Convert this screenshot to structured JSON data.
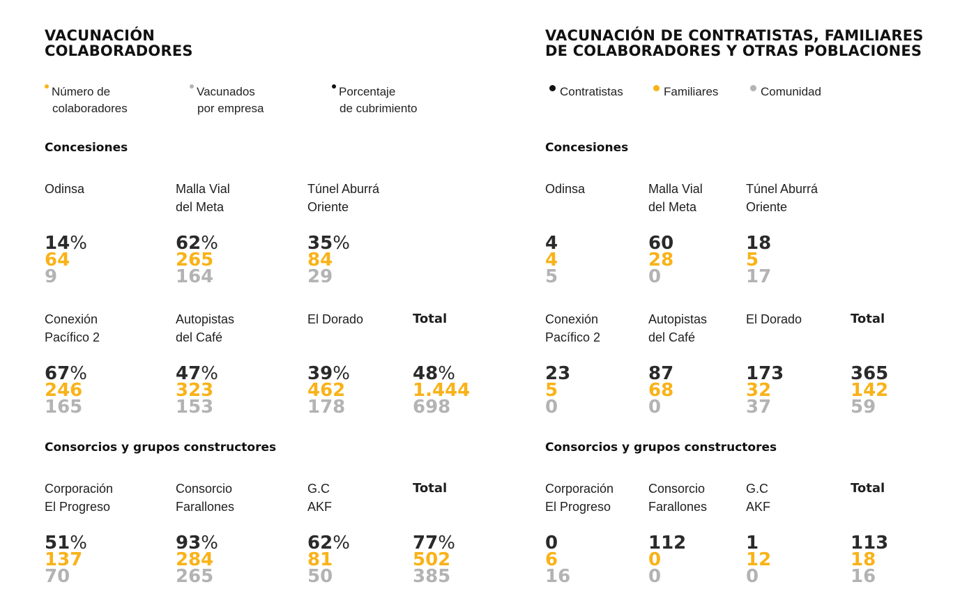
{
  "colors": {
    "black": "#111111",
    "orange": "#f9b218",
    "gray": "#b3b3b3"
  },
  "left": {
    "title": [
      "VACUNACIÓN",
      "COLABORADORES"
    ],
    "legend": [
      {
        "color": "orange",
        "line1": "Número de",
        "line2": "colaboradores"
      },
      {
        "color": "gray",
        "line1": "Vacunados",
        "line2": "por empresa"
      },
      {
        "color": "black",
        "line1": "Porcentaje",
        "line2": "de cubrimiento"
      }
    ],
    "sections": [
      {
        "title": "Concesiones",
        "rows": [
          [
            {
              "name": [
                "Odinsa"
              ],
              "v1": "14",
              "v2": "64",
              "v3": "9"
            },
            {
              "name": [
                "Malla Vial",
                "del Meta"
              ],
              "v1": "62",
              "v2": "265",
              "v3": "164"
            },
            {
              "name": [
                "Túnel Aburrá",
                "Oriente"
              ],
              "v1": "35",
              "v2": "84",
              "v3": "29"
            }
          ],
          [
            {
              "name": [
                "Conexión",
                "Pacífico 2"
              ],
              "v1": "67",
              "v2": "246",
              "v3": "165"
            },
            {
              "name": [
                "Autopistas",
                "del Café"
              ],
              "v1": "47",
              "v2": "323",
              "v3": "153"
            },
            {
              "name": [
                "El Dorado"
              ],
              "v1": "39",
              "v2": "462",
              "v3": "178"
            },
            {
              "name": [
                "Total"
              ],
              "total": true,
              "v1": "48",
              "v2": "1.444",
              "v3": "698"
            }
          ]
        ]
      },
      {
        "title": "Consorcios y grupos constructores",
        "rows": [
          [
            {
              "name": [
                "Corporación",
                "El Progreso"
              ],
              "v1": "51",
              "v2": "137",
              "v3": "70"
            },
            {
              "name": [
                "Consorcio",
                "Farallones"
              ],
              "v1": "93",
              "v2": "284",
              "v3": "265"
            },
            {
              "name": [
                "G.C",
                "AKF"
              ],
              "v1": "62",
              "v2": "81",
              "v3": "50"
            },
            {
              "name": [
                "Total"
              ],
              "total": true,
              "v1": "77",
              "v2": "502",
              "v3": "385"
            }
          ]
        ]
      }
    ]
  },
  "right": {
    "title": [
      "VACUNACIÓN DE CONTRATISTAS, FAMILIARES",
      "DE COLABORADORES Y OTRAS POBLACIONES"
    ],
    "legend": [
      {
        "color": "black",
        "line1": "Contratistas"
      },
      {
        "color": "orange",
        "line1": "Familiares"
      },
      {
        "color": "gray",
        "line1": "Comunidad"
      }
    ],
    "sections": [
      {
        "title": "Concesiones",
        "rows": [
          [
            {
              "name": [
                "Odinsa"
              ],
              "v1": "4",
              "v2": "4",
              "v3": "5"
            },
            {
              "name": [
                "Malla Vial",
                "del Meta"
              ],
              "v1": "60",
              "v2": "28",
              "v3": "0"
            },
            {
              "name": [
                "Túnel Aburrá",
                "Oriente"
              ],
              "v1": "18",
              "v2": "5",
              "v3": "17"
            }
          ],
          [
            {
              "name": [
                "Conexión",
                "Pacífico 2"
              ],
              "v1": "23",
              "v2": "5",
              "v3": "0"
            },
            {
              "name": [
                "Autopistas",
                "del Café"
              ],
              "v1": "87",
              "v2": "68",
              "v3": "0"
            },
            {
              "name": [
                "El Dorado"
              ],
              "v1": "173",
              "v2": "32",
              "v3": "37"
            },
            {
              "name": [
                "Total"
              ],
              "total": true,
              "v1": "365",
              "v2": "142",
              "v3": "59"
            }
          ]
        ]
      },
      {
        "title": "Consorcios y grupos constructores",
        "rows": [
          [
            {
              "name": [
                "Corporación",
                "El Progreso"
              ],
              "v1": "0",
              "v2": "6",
              "v3": "16"
            },
            {
              "name": [
                "Consorcio",
                "Farallones"
              ],
              "v1": "112",
              "v2": "0",
              "v3": "0"
            },
            {
              "name": [
                "G.C",
                "AKF"
              ],
              "v1": "1",
              "v2": "12",
              "v3": "0"
            },
            {
              "name": [
                "Total"
              ],
              "total": true,
              "v1": "113",
              "v2": "18",
              "v3": "16"
            }
          ]
        ]
      }
    ]
  }
}
